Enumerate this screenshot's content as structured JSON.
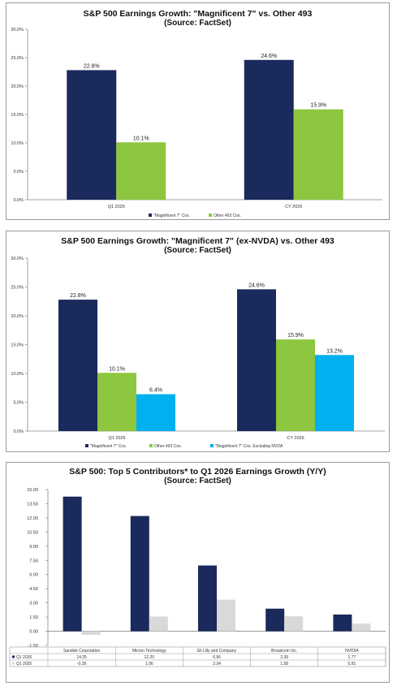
{
  "colors": {
    "mag7": "#1b2a5c",
    "other493": "#8dc63f",
    "exnvda": "#00b0f0",
    "q12025": "#d9d9d9",
    "axis": "#888888"
  },
  "chart_data": [
    {
      "type": "bar",
      "title": "S&P 500 Earnings Growth: \"Magnificent 7\" vs. Other 493",
      "subtitle": "(Source: FactSet)",
      "categories": [
        "Q1 2026",
        "CY 2026"
      ],
      "series": [
        {
          "name": "\"Magnificent 7\" Cos.",
          "values": [
            22.8,
            24.6
          ],
          "labels": [
            "22.8%",
            "24.6%"
          ]
        },
        {
          "name": "Other 493 Cos.",
          "values": [
            10.1,
            15.9
          ],
          "labels": [
            "10.1%",
            "15.9%"
          ]
        }
      ],
      "ylim": [
        0,
        30
      ],
      "yticks": [
        "0.0%",
        "5.0%",
        "10.0%",
        "15.0%",
        "20.0%",
        "25.0%",
        "30.0%"
      ],
      "legend": "bottom",
      "grid": false
    },
    {
      "type": "bar",
      "title": "S&P 500 Earnings Growth: \"Magnificent 7\" (ex-NVDA)  vs. Other 493",
      "subtitle": "(Source: FactSet)",
      "categories": [
        "Q1 2026",
        "CY 2026"
      ],
      "series": [
        {
          "name": "\"Magnificent 7\" Cos.",
          "values": [
            22.8,
            24.6
          ],
          "labels": [
            "22.8%",
            "24.6%"
          ]
        },
        {
          "name": "Other 493 Cos.",
          "values": [
            10.1,
            15.9
          ],
          "labels": [
            "10.1%",
            "15.9%"
          ]
        },
        {
          "name": "\"Magnificent 7\" Cos. Excluding NVDA",
          "values": [
            6.4,
            13.2
          ],
          "labels": [
            "6.4%",
            "13.2%"
          ]
        }
      ],
      "ylim": [
        0,
        30
      ],
      "yticks": [
        "0.0%",
        "5.0%",
        "10.0%",
        "15.0%",
        "20.0%",
        "25.0%",
        "30.0%"
      ],
      "legend": "bottom",
      "grid": false
    },
    {
      "type": "bar",
      "title": "S&P 500: Top 5 Contributors* to Q1 2026 Earnings Growth (Y/Y)",
      "subtitle": "(Source: FactSet)",
      "categories": [
        "Sandisk Corporation",
        "Micron Technology",
        "Eli Lilly and Company",
        "Broadcom Inc.",
        "NVIDIA"
      ],
      "series": [
        {
          "name": "Q1 2026",
          "values": [
            14.25,
            12.2,
            6.96,
            2.39,
            1.77
          ],
          "labels": [
            "14.25",
            "12.20",
            "6.96",
            "2.39",
            "1.77"
          ]
        },
        {
          "name": "Q1 2025",
          "values": [
            -0.39,
            1.56,
            3.34,
            1.58,
            0.81
          ],
          "labels": [
            "-0.39",
            "1.56",
            "3.34",
            "1.58",
            "0.81"
          ]
        }
      ],
      "ylim": [
        -1.5,
        15
      ],
      "yticks": [
        "-1.50",
        "0.00",
        "1.50",
        "3.00",
        "4.50",
        "6.00",
        "7.50",
        "9.00",
        "10.50",
        "12.00",
        "13.50",
        "15.00"
      ],
      "legend": "data-table",
      "grid": false
    }
  ]
}
